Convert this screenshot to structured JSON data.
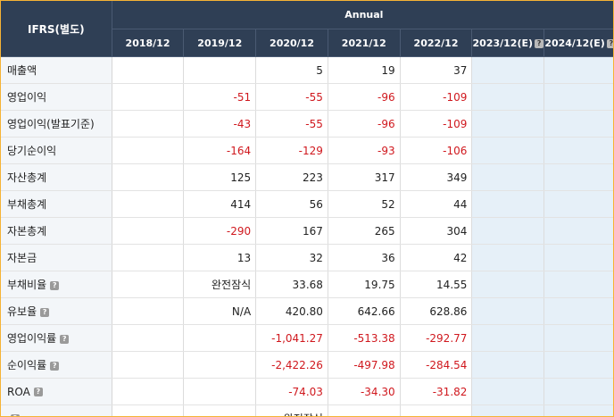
{
  "header": {
    "label": "IFRS(별도)",
    "group": "Annual",
    "years": [
      "2018/12",
      "2019/12",
      "2020/12",
      "2021/12",
      "2022/12",
      "2023/12(E)",
      "2024/12(E)"
    ]
  },
  "help_icon": "question-mark-icon",
  "colors": {
    "header_bg": "#2f3f55",
    "negative": "#d0181e",
    "estimate_bg": "#e6f0f8",
    "border": "#f5b335"
  },
  "rows": [
    {
      "label": "매출액",
      "help": false,
      "values": [
        "",
        "",
        "5",
        "19",
        "37",
        "",
        ""
      ]
    },
    {
      "label": "영업이익",
      "help": false,
      "values": [
        "",
        "-51",
        "-55",
        "-96",
        "-109",
        "",
        ""
      ]
    },
    {
      "label": "영업이익(발표기준)",
      "help": false,
      "values": [
        "",
        "-43",
        "-55",
        "-96",
        "-109",
        "",
        ""
      ]
    },
    {
      "label": "당기순이익",
      "help": false,
      "values": [
        "",
        "-164",
        "-129",
        "-93",
        "-106",
        "",
        ""
      ]
    },
    {
      "label": "자산총계",
      "help": false,
      "values": [
        "",
        "125",
        "223",
        "317",
        "349",
        "",
        ""
      ]
    },
    {
      "label": "부채총계",
      "help": false,
      "values": [
        "",
        "414",
        "56",
        "52",
        "44",
        "",
        ""
      ]
    },
    {
      "label": "자본총계",
      "help": false,
      "values": [
        "",
        "-290",
        "167",
        "265",
        "304",
        "",
        ""
      ]
    },
    {
      "label": "자본금",
      "help": false,
      "values": [
        "",
        "13",
        "32",
        "36",
        "42",
        "",
        ""
      ]
    },
    {
      "label": "부채비율",
      "help": true,
      "values": [
        "",
        "완전잠식",
        "33.68",
        "19.75",
        "14.55",
        "",
        ""
      ]
    },
    {
      "label": "유보율",
      "help": true,
      "values": [
        "",
        "N/A",
        "420.80",
        "642.66",
        "628.86",
        "",
        ""
      ]
    },
    {
      "label": "영업이익률",
      "help": true,
      "values": [
        "",
        "",
        "-1,041.27",
        "-513.38",
        "-292.77",
        "",
        ""
      ]
    },
    {
      "label": "순이익률",
      "help": true,
      "values": [
        "",
        "",
        "-2,422.26",
        "-497.98",
        "-284.54",
        "",
        ""
      ]
    },
    {
      "label": "ROA",
      "help": true,
      "values": [
        "",
        "",
        "-74.03",
        "-34.30",
        "-31.82",
        "",
        ""
      ]
    },
    {
      "label": "",
      "help": true,
      "values": [
        "",
        "",
        "완전잠식",
        "",
        "",
        "",
        ""
      ]
    }
  ]
}
